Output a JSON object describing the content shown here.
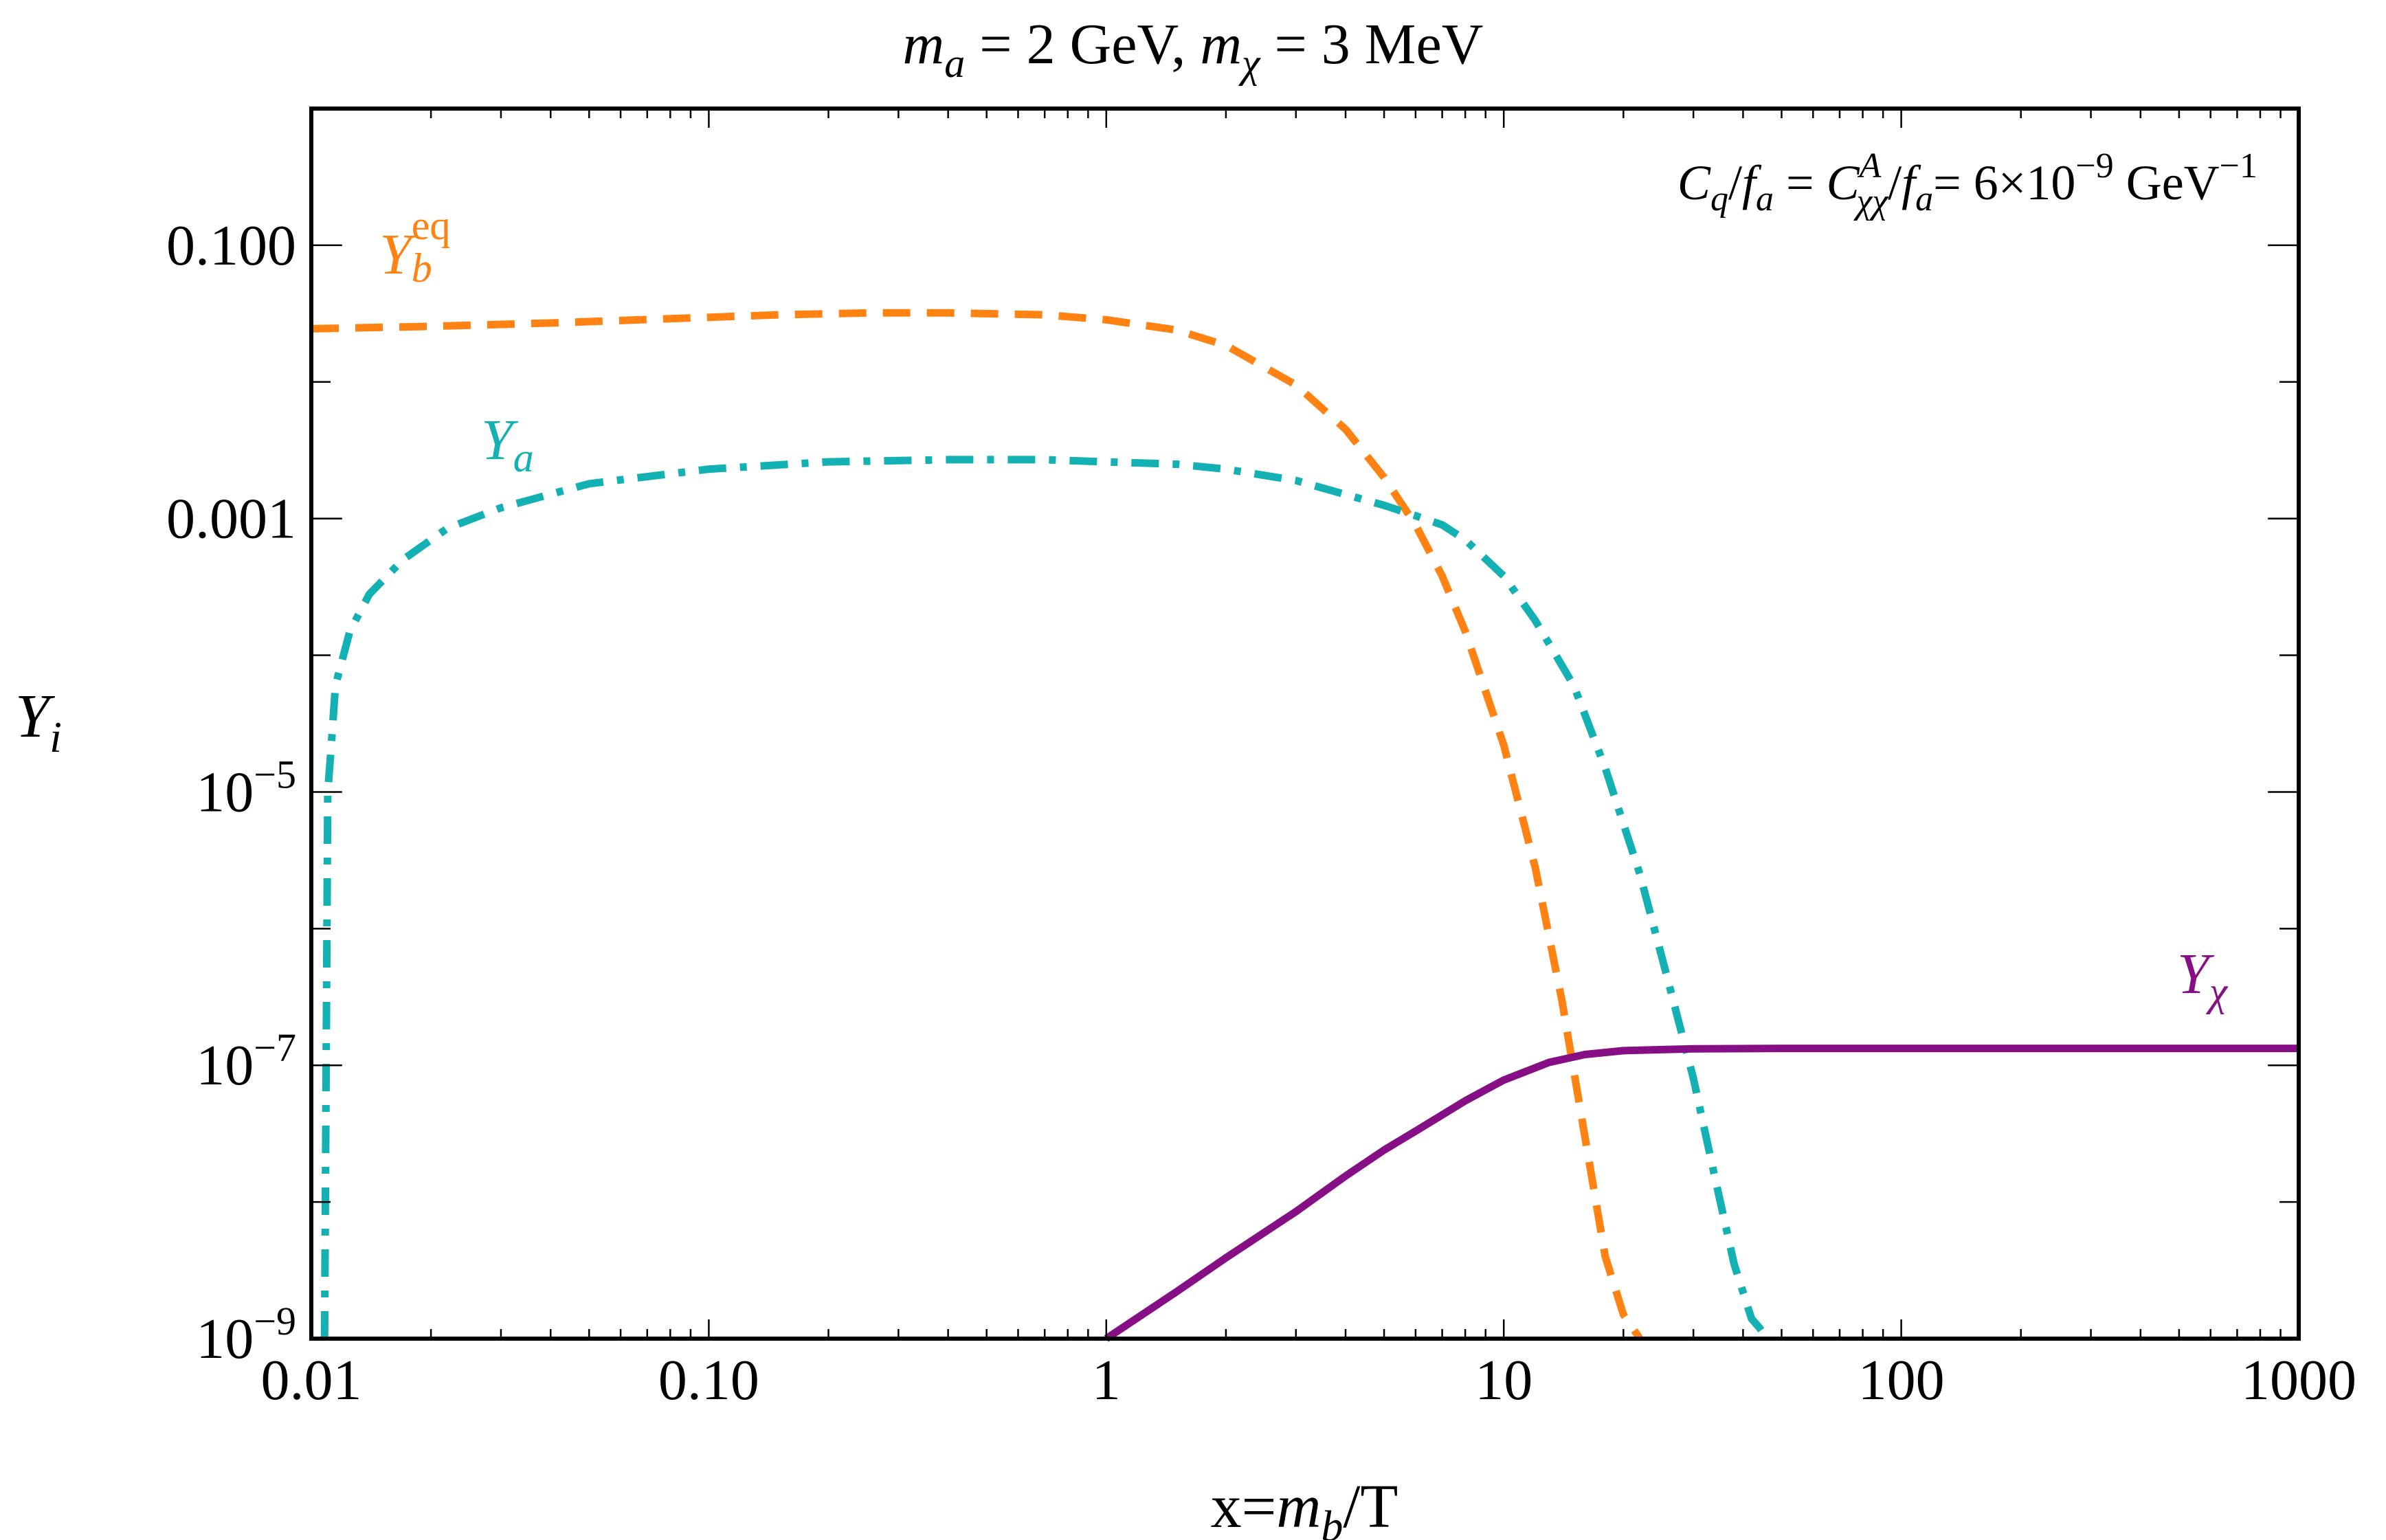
{
  "chart_data": {
    "type": "line",
    "title_parts": {
      "m1": "m",
      "m1_sub": "a",
      "eq1": " = 2 GeV, ",
      "m2": "m",
      "m2_sub": "χ",
      "eq2": " = 3 MeV"
    },
    "xlabel_parts": {
      "pre": "x=",
      "m": "m",
      "m_sub": "b",
      "post": "/T"
    },
    "ylabel_parts": {
      "y": "Y",
      "y_sub": "i"
    },
    "annotation_parts": {
      "c1": "C",
      "c1_sub": "q",
      "slash1": "/",
      "f1": "f",
      "f1_sub": "a",
      "eq": " = ",
      "c2": "C",
      "c2_sup": "A",
      "c2_sub": "χχ",
      "slash2": "/",
      "f2": "f",
      "f2_sub": "a",
      "val": "= 6×10",
      "val_sup": "−9",
      "unit": " GeV",
      "unit_sup": "−1"
    },
    "xscale": "log",
    "yscale": "log",
    "xlim": [
      0.01,
      1000
    ],
    "ylim": [
      1e-09,
      1
    ],
    "x_ticks": [
      {
        "value": 0.01,
        "label": "0.01"
      },
      {
        "value": 0.1,
        "label": "0.10"
      },
      {
        "value": 1,
        "label": "1"
      },
      {
        "value": 10,
        "label": "10"
      },
      {
        "value": 100,
        "label": "100"
      },
      {
        "value": 1000,
        "label": "1000"
      }
    ],
    "y_ticks": [
      {
        "value": 0.1,
        "base": "0.100",
        "exp": ""
      },
      {
        "value": 0.001,
        "base": "0.001",
        "exp": ""
      },
      {
        "value": 1e-05,
        "base": "10",
        "exp": "−5"
      },
      {
        "value": 1e-07,
        "base": "10",
        "exp": "−7"
      },
      {
        "value": 1e-09,
        "base": "10",
        "exp": "−9"
      }
    ],
    "series": [
      {
        "name": "Y_b^eq",
        "label": {
          "main": "Y",
          "sub": "b",
          "sup": "eq"
        },
        "color": "#ff8213",
        "dash": "dashed",
        "x": [
          0.01,
          0.02,
          0.04,
          0.08,
          0.15,
          0.25,
          0.4,
          0.7,
          1.0,
          1.5,
          2.0,
          3.0,
          4.0,
          5.0,
          6.0,
          7.0,
          8.0,
          10.0,
          12.0,
          14.0,
          16.0,
          18.0,
          20.0,
          22.0
        ],
        "y": [
          0.0245,
          0.0255,
          0.027,
          0.029,
          0.031,
          0.032,
          0.032,
          0.031,
          0.0285,
          0.024,
          0.0185,
          0.0095,
          0.0045,
          0.002,
          0.0009,
          0.00038,
          0.00015,
          2.2e-05,
          2.8e-06,
          3e-07,
          3e-08,
          4e-09,
          1.5e-09,
          1e-09
        ]
      },
      {
        "name": "Y_a",
        "label": {
          "main": "Y",
          "sub": "a",
          "sup": ""
        },
        "color": "#13b1b3",
        "dash": "dashdot",
        "x": [
          0.0108,
          0.0109,
          0.011,
          0.0112,
          0.0115,
          0.0125,
          0.014,
          0.017,
          0.022,
          0.03,
          0.05,
          0.1,
          0.2,
          0.4,
          0.7,
          1.0,
          1.5,
          2.0,
          3.0,
          4.0,
          5.0,
          6.0,
          7.0,
          8.0,
          10.0,
          12.0,
          15.0,
          18.0,
          22.0,
          26.0,
          30.0,
          34.0,
          38.0,
          42.0,
          44.0,
          46.0
        ],
        "y": [
          1e-09,
          1e-07,
          1e-05,
          2e-05,
          6e-05,
          0.00015,
          0.00028,
          0.0005,
          0.00085,
          0.0012,
          0.0018,
          0.0023,
          0.0026,
          0.0027,
          0.0027,
          0.0026,
          0.0025,
          0.0023,
          0.0019,
          0.0015,
          0.00125,
          0.00105,
          0.0009,
          0.0007,
          0.00038,
          0.00018,
          6e-05,
          1.5e-05,
          2.5e-06,
          4e-07,
          8e-08,
          1.5e-08,
          3.5e-09,
          1.4e-09,
          1.2e-09,
          1e-09
        ]
      },
      {
        "name": "Y_χ",
        "label": {
          "main": "Y",
          "sub": "χ",
          "sup": ""
        },
        "color": "#860f86",
        "dash": "solid",
        "x": [
          1.0,
          1.5,
          2.0,
          3.0,
          4.0,
          5.0,
          6.0,
          8.0,
          10.0,
          13.0,
          16.0,
          20.0,
          30.0,
          50.0,
          100.0,
          1000.0
        ],
        "y": [
          1e-09,
          2.2e-09,
          3.9e-09,
          8.5e-09,
          1.55e-08,
          2.4e-08,
          3.3e-08,
          5.5e-08,
          7.8e-08,
          1.05e-07,
          1.2e-07,
          1.28e-07,
          1.32e-07,
          1.33e-07,
          1.33e-07,
          1.33e-07
        ]
      }
    ],
    "grid": false
  }
}
